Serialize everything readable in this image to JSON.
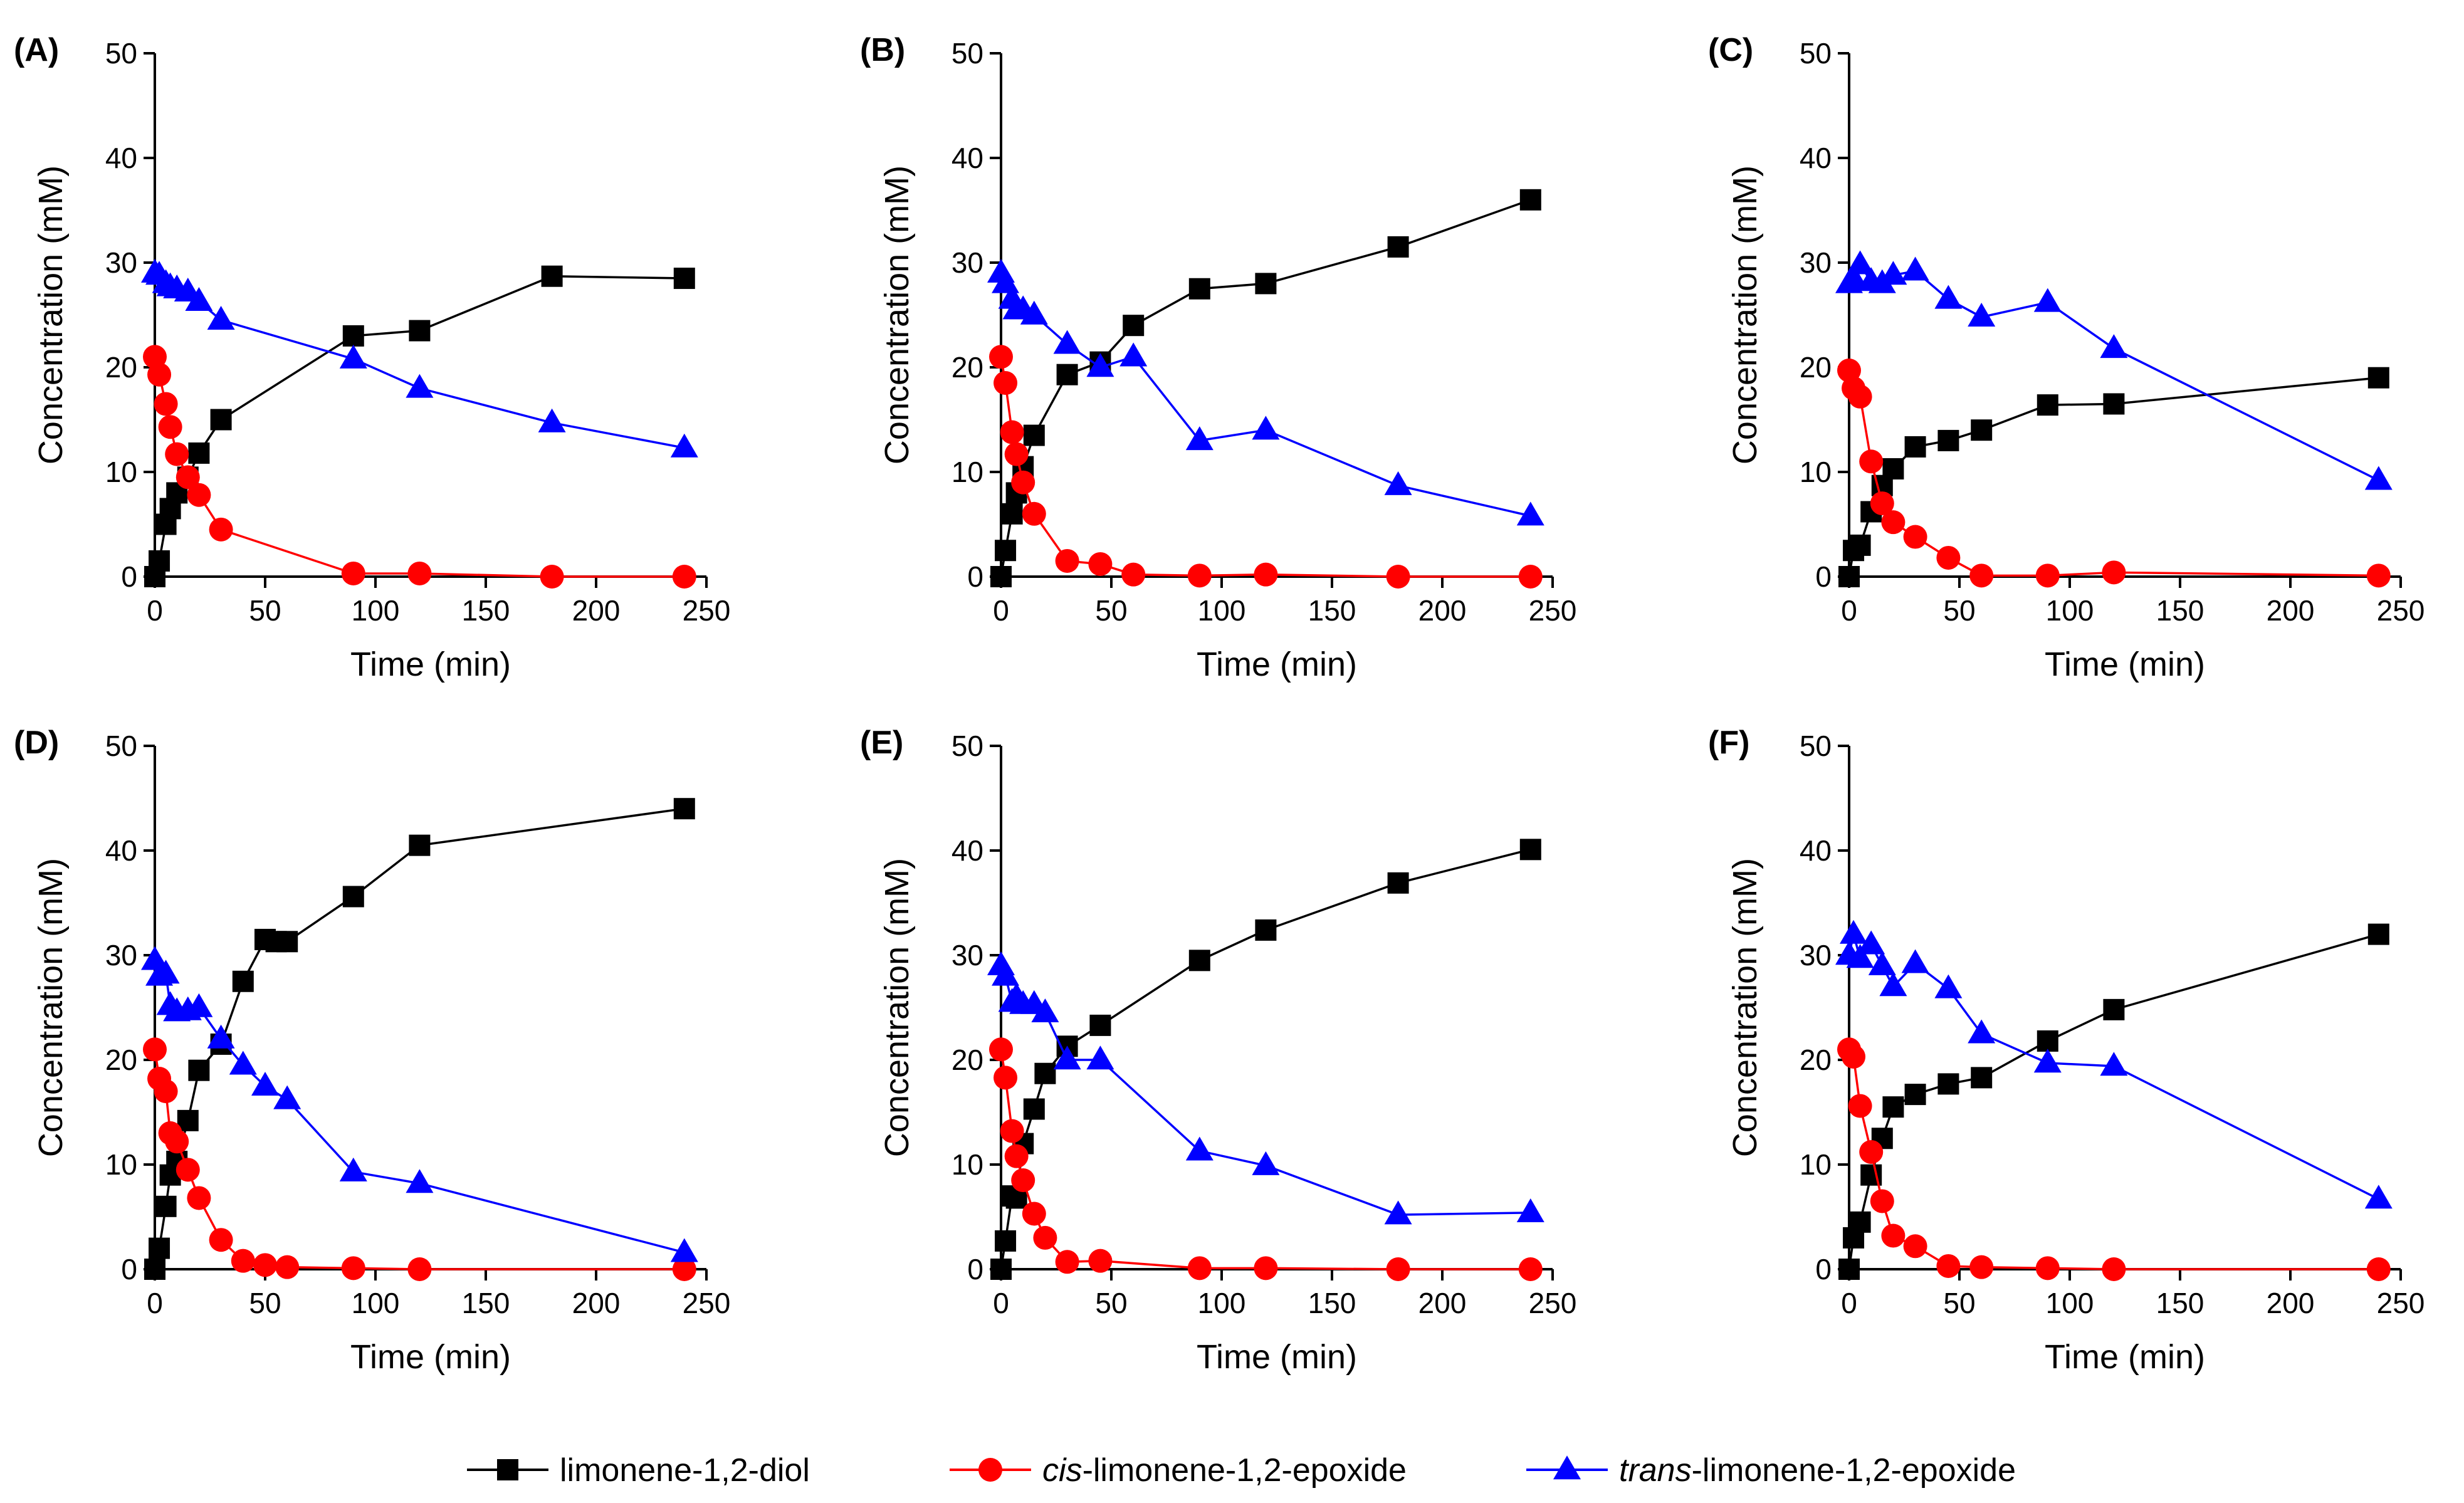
{
  "figure": {
    "legend": [
      {
        "series": "diol",
        "italic": "",
        "rest": "limonene-1,2-diol"
      },
      {
        "series": "cis",
        "italic": "cis",
        "rest": "-limonene-1,2-epoxide"
      },
      {
        "series": "trans",
        "italic": "trans",
        "rest": "-limonene-1,2-epoxide"
      }
    ]
  },
  "colors": {
    "diol": "#000000",
    "cis": "#ff0000",
    "trans": "#0000ff",
    "axis": "#000000"
  },
  "chart_data": [
    {
      "panel": "(A)",
      "type": "line",
      "xlabel": "Time (min)",
      "ylabel": "Concentration (mM)",
      "xlim": [
        0,
        250
      ],
      "ylim": [
        0,
        50
      ],
      "xticks": [
        0,
        50,
        100,
        150,
        200,
        250
      ],
      "yticks": [
        0,
        10,
        20,
        30,
        40,
        50
      ],
      "series": [
        {
          "name": "limonene-1,2-diol",
          "key": "diol",
          "marker": "square",
          "x": [
            0,
            2,
            5,
            7,
            10,
            15,
            20,
            30,
            90,
            120,
            180,
            240
          ],
          "y": [
            0,
            1.5,
            5,
            6.5,
            8,
            9.5,
            11.8,
            15,
            23,
            23.5,
            28.7,
            28.5
          ]
        },
        {
          "name": "cis-limonene-1,2-epoxide",
          "key": "cis",
          "marker": "circle",
          "x": [
            0,
            2,
            5,
            7,
            10,
            15,
            20,
            30,
            90,
            120,
            180,
            240
          ],
          "y": [
            21,
            19.3,
            16.5,
            14.3,
            11.7,
            9.5,
            7.8,
            4.5,
            0.3,
            0.3,
            0,
            0
          ]
        },
        {
          "name": "trans-limonene-1,2-epoxide",
          "key": "trans",
          "marker": "triangle",
          "x": [
            0,
            2,
            5,
            7,
            10,
            15,
            20,
            30,
            90,
            120,
            180,
            240
          ],
          "y": [
            29,
            28.8,
            28,
            27.7,
            27.5,
            27.2,
            26.3,
            24.5,
            20.8,
            18,
            14.7,
            12.3
          ]
        }
      ]
    },
    {
      "panel": "(B)",
      "type": "line",
      "xlabel": "Time (min)",
      "ylabel": "Concentration (mM)",
      "xlim": [
        0,
        250
      ],
      "ylim": [
        0,
        50
      ],
      "xticks": [
        0,
        50,
        100,
        150,
        200,
        250
      ],
      "yticks": [
        0,
        10,
        20,
        30,
        40,
        50
      ],
      "series": [
        {
          "name": "limonene-1,2-diol",
          "key": "diol",
          "marker": "square",
          "x": [
            0,
            2,
            5,
            7,
            10,
            15,
            30,
            45,
            60,
            90,
            120,
            180,
            240
          ],
          "y": [
            0,
            2.5,
            6,
            8,
            10.5,
            13.5,
            19.3,
            20.5,
            24,
            27.5,
            28,
            31.5,
            36
          ]
        },
        {
          "name": "cis-limonene-1,2-epoxide",
          "key": "cis",
          "marker": "circle",
          "x": [
            0,
            2,
            5,
            7,
            10,
            15,
            30,
            45,
            60,
            90,
            120,
            180,
            240
          ],
          "y": [
            21,
            18.5,
            13.8,
            11.7,
            9,
            6,
            1.5,
            1.2,
            0.2,
            0.1,
            0.2,
            0,
            0
          ]
        },
        {
          "name": "trans-limonene-1,2-epoxide",
          "key": "trans",
          "marker": "triangle",
          "x": [
            0,
            2,
            5,
            7,
            10,
            15,
            30,
            45,
            60,
            90,
            120,
            180,
            240
          ],
          "y": [
            29,
            28,
            26.5,
            25.5,
            25.5,
            25,
            22.2,
            20,
            21,
            13,
            14,
            8.7,
            5.8
          ]
        }
      ]
    },
    {
      "panel": "(C)",
      "type": "line",
      "xlabel": "Time (min)",
      "ylabel": "Concentration (mM)",
      "xlim": [
        0,
        250
      ],
      "ylim": [
        0,
        50
      ],
      "xticks": [
        0,
        50,
        100,
        150,
        200,
        250
      ],
      "yticks": [
        0,
        10,
        20,
        30,
        40,
        50
      ],
      "series": [
        {
          "name": "limonene-1,2-diol",
          "key": "diol",
          "marker": "square",
          "x": [
            0,
            2,
            5,
            10,
            15,
            20,
            30,
            45,
            60,
            90,
            120,
            240
          ],
          "y": [
            0,
            2.5,
            3,
            6.2,
            8.7,
            10.3,
            12.4,
            13,
            14,
            16.4,
            16.5,
            19
          ]
        },
        {
          "name": "cis-limonene-1,2-epoxide",
          "key": "cis",
          "marker": "circle",
          "x": [
            0,
            2,
            5,
            10,
            15,
            20,
            30,
            45,
            60,
            90,
            120,
            240
          ],
          "y": [
            19.7,
            18,
            17.2,
            11,
            7,
            5.2,
            3.8,
            1.8,
            0.1,
            0.1,
            0.4,
            0.1
          ]
        },
        {
          "name": "trans-limonene-1,2-epoxide",
          "key": "trans",
          "marker": "triangle",
          "x": [
            0,
            2,
            5,
            10,
            15,
            20,
            30,
            45,
            60,
            90,
            120,
            240
          ],
          "y": [
            28,
            28.5,
            29.8,
            28.2,
            28,
            28.8,
            29.2,
            26.5,
            24.8,
            26.2,
            21.8,
            9.2
          ]
        }
      ]
    },
    {
      "panel": "(D)",
      "type": "line",
      "xlabel": "Time (min)",
      "ylabel": "Concentration (mM)",
      "xlim": [
        0,
        250
      ],
      "ylim": [
        0,
        50
      ],
      "xticks": [
        0,
        50,
        100,
        150,
        200,
        250
      ],
      "yticks": [
        0,
        10,
        20,
        30,
        40,
        50
      ],
      "series": [
        {
          "name": "limonene-1,2-diol",
          "key": "diol",
          "marker": "square",
          "x": [
            0,
            2,
            5,
            7,
            10,
            15,
            20,
            30,
            40,
            50,
            55,
            60,
            90,
            120,
            240
          ],
          "y": [
            0,
            2,
            6,
            9,
            10.3,
            14.2,
            19,
            21.5,
            27.5,
            31.5,
            31.3,
            31.3,
            35.6,
            40.5,
            44
          ]
        },
        {
          "name": "cis-limonene-1,2-epoxide",
          "key": "cis",
          "marker": "circle",
          "x": [
            0,
            2,
            5,
            7,
            10,
            15,
            20,
            30,
            40,
            50,
            60,
            90,
            120,
            240
          ],
          "y": [
            21,
            18.2,
            17,
            13,
            12.2,
            9.5,
            6.8,
            2.8,
            0.8,
            0.4,
            0.2,
            0.1,
            0,
            0
          ]
        },
        {
          "name": "trans-limonene-1,2-epoxide",
          "key": "trans",
          "marker": "triangle",
          "x": [
            0,
            2,
            5,
            7,
            10,
            15,
            20,
            30,
            40,
            50,
            60,
            90,
            120,
            240
          ],
          "y": [
            29.5,
            28,
            28.2,
            25.2,
            24.6,
            24.7,
            25,
            22,
            19.5,
            17.5,
            16.2,
            9.3,
            8.2,
            1.6
          ]
        }
      ]
    },
    {
      "panel": "(E)",
      "type": "line",
      "xlabel": "Time (min)",
      "ylabel": "Concentration (mM)",
      "xlim": [
        0,
        250
      ],
      "ylim": [
        0,
        50
      ],
      "xticks": [
        0,
        50,
        100,
        150,
        200,
        250
      ],
      "yticks": [
        0,
        10,
        20,
        30,
        40,
        50
      ],
      "series": [
        {
          "name": "limonene-1,2-diol",
          "key": "diol",
          "marker": "square",
          "x": [
            0,
            2,
            5,
            7,
            10,
            15,
            20,
            30,
            45,
            90,
            120,
            180,
            240
          ],
          "y": [
            0,
            2.7,
            7,
            6.8,
            12,
            15.3,
            18.7,
            21.3,
            23.3,
            29.5,
            32.4,
            36.9,
            40.1
          ]
        },
        {
          "name": "cis-limonene-1,2-epoxide",
          "key": "cis",
          "marker": "circle",
          "x": [
            0,
            2,
            5,
            7,
            10,
            15,
            20,
            30,
            45,
            90,
            120,
            180,
            240
          ],
          "y": [
            21,
            18.3,
            13.2,
            10.8,
            8.5,
            5.3,
            3,
            0.7,
            0.8,
            0.1,
            0.1,
            0,
            0
          ]
        },
        {
          "name": "trans-limonene-1,2-epoxide",
          "key": "trans",
          "marker": "triangle",
          "x": [
            0,
            2,
            5,
            7,
            10,
            15,
            20,
            30,
            45,
            90,
            120,
            180,
            240
          ],
          "y": [
            29,
            28,
            25.5,
            26,
            25.3,
            25.3,
            24.5,
            20,
            20,
            11.3,
            9.9,
            5.2,
            5.4
          ]
        }
      ]
    },
    {
      "panel": "(F)",
      "type": "line",
      "xlabel": "Time (min)",
      "ylabel": "Concentration (mM)",
      "xlim": [
        0,
        250
      ],
      "ylim": [
        0,
        50
      ],
      "xticks": [
        0,
        50,
        100,
        150,
        200,
        250
      ],
      "yticks": [
        0,
        10,
        20,
        30,
        40,
        50
      ],
      "series": [
        {
          "name": "limonene-1,2-diol",
          "key": "diol",
          "marker": "square",
          "x": [
            0,
            2,
            5,
            10,
            15,
            20,
            30,
            45,
            60,
            90,
            120,
            240
          ],
          "y": [
            0,
            3,
            4.5,
            9,
            12.5,
            15.5,
            16.7,
            17.7,
            18.3,
            21.8,
            24.8,
            32
          ]
        },
        {
          "name": "cis-limonene-1,2-epoxide",
          "key": "cis",
          "marker": "circle",
          "x": [
            0,
            2,
            5,
            10,
            15,
            20,
            30,
            45,
            60,
            90,
            120,
            240
          ],
          "y": [
            21,
            20.3,
            15.6,
            11.2,
            6.5,
            3.2,
            2.2,
            0.3,
            0.2,
            0.1,
            0,
            0
          ]
        },
        {
          "name": "trans-limonene-1,2-epoxide",
          "key": "trans",
          "marker": "triangle",
          "x": [
            0,
            2,
            5,
            10,
            15,
            20,
            30,
            45,
            60,
            90,
            120,
            240
          ],
          "y": [
            30,
            32,
            29.7,
            31,
            29,
            27,
            29.2,
            26.8,
            22.5,
            19.7,
            19.4,
            6.7
          ]
        }
      ]
    }
  ]
}
